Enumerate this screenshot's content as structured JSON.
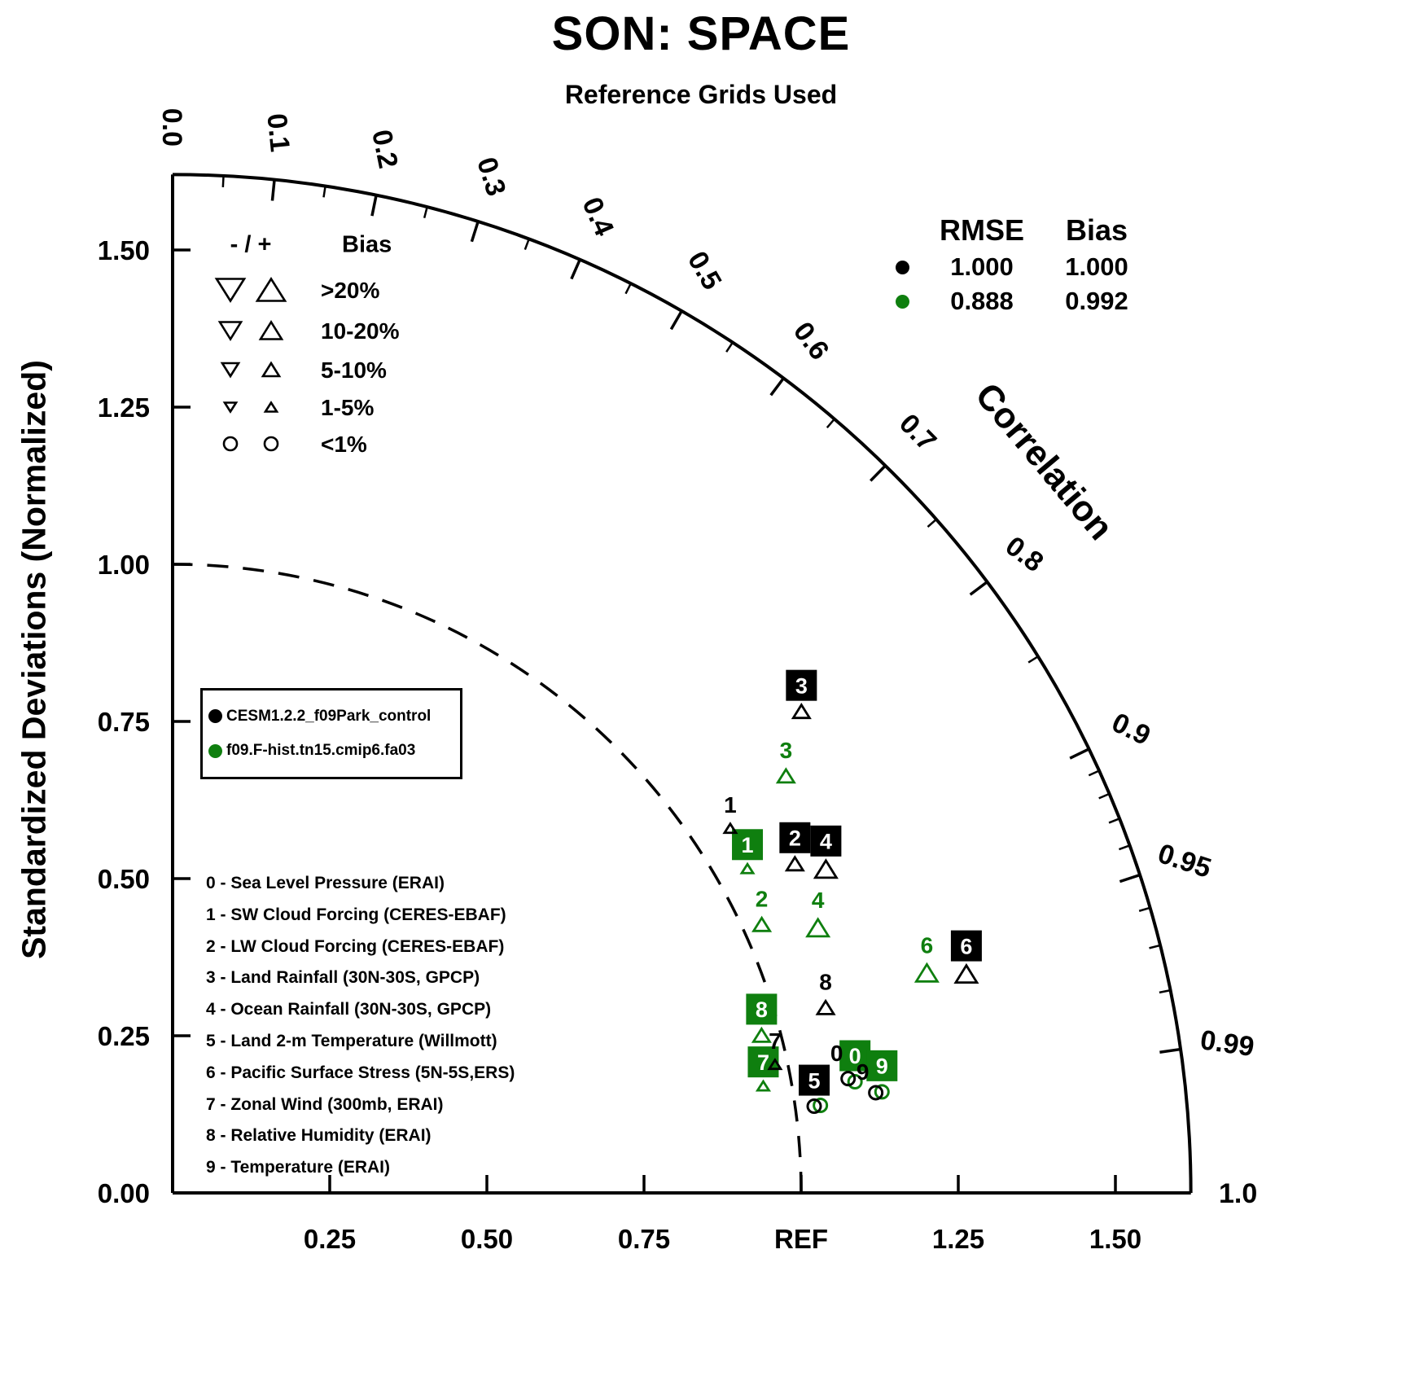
{
  "title": "SON: SPACE",
  "subtitle": "Reference Grids Used",
  "y_axis_title": "Standardized Deviations (Normalized)",
  "chart_data": {
    "type": "taylor",
    "correlation_axis_label": "Correlation",
    "reference_radius": 1.0,
    "sd_axis": {
      "max": 1.62,
      "ticks": [
        {
          "value": 0.0,
          "left": "0.00",
          "bottom": null
        },
        {
          "value": 0.25,
          "left": "0.25",
          "bottom": "0.25"
        },
        {
          "value": 0.5,
          "left": "0.50",
          "bottom": "0.50"
        },
        {
          "value": 0.75,
          "left": "0.75",
          "bottom": "0.75"
        },
        {
          "value": 1.0,
          "left": "1.00",
          "bottom": "REF"
        },
        {
          "value": 1.25,
          "left": "1.25",
          "bottom": "1.25"
        },
        {
          "value": 1.5,
          "left": "1.50",
          "bottom": "1.50"
        }
      ]
    },
    "correlation_ticks": {
      "major": [
        {
          "value": 0.0,
          "label": "0.0"
        },
        {
          "value": 0.1,
          "label": "0.1"
        },
        {
          "value": 0.2,
          "label": "0.2"
        },
        {
          "value": 0.3,
          "label": "0.3"
        },
        {
          "value": 0.4,
          "label": "0.4"
        },
        {
          "value": 0.5,
          "label": "0.5"
        },
        {
          "value": 0.6,
          "label": "0.6"
        },
        {
          "value": 0.7,
          "label": "0.7"
        },
        {
          "value": 0.8,
          "label": "0.8"
        },
        {
          "value": 0.9,
          "label": "0.9"
        },
        {
          "value": 0.95,
          "label": "0.95"
        },
        {
          "value": 0.99,
          "label": "0.99"
        },
        {
          "value": 1.0,
          "label": "1.0"
        }
      ],
      "minor": [
        0.05,
        0.15,
        0.25,
        0.35,
        0.45,
        0.55,
        0.65,
        0.75,
        0.85,
        0.91,
        0.92,
        0.93,
        0.94,
        0.96,
        0.97,
        0.98
      ]
    },
    "bias_legend": {
      "symbols_header": "- / +",
      "title": "Bias",
      "rows": [
        {
          "category": ">20%",
          "label": ">20%"
        },
        {
          "category": "10-20%",
          "label": "10-20%"
        },
        {
          "category": "5-10%",
          "label": "5-10%"
        },
        {
          "category": "1-5%",
          "label": "1-5%"
        },
        {
          "category": "<1%",
          "label": "<1%"
        }
      ]
    },
    "stats": {
      "headers": [
        "RMSE",
        "Bias"
      ],
      "rows": [
        {
          "model": "black",
          "rmse": "1.000",
          "bias": "1.000"
        },
        {
          "model": "green",
          "rmse": "0.888",
          "bias": "0.992"
        }
      ]
    },
    "models": [
      {
        "key": "black",
        "color": "#000000",
        "label": "CESM1.2.2_f09Park_control"
      },
      {
        "key": "green",
        "color": "#0f7f0f",
        "label": "f09.F-hist.tn15.cmip6.fa03"
      }
    ],
    "variables": [
      "0 - Sea Level Pressure (ERAI)",
      "1 - SW Cloud Forcing (CERES-EBAF)",
      "2 - LW Cloud Forcing (CERES-EBAF)",
      "3 - Land Rainfall (30N-30S, GPCP)",
      "4 - Ocean Rainfall (30N-30S, GPCP)",
      "5 - Land 2-m Temperature (Willmott)",
      "6 - Pacific Surface Stress (5N-5S,ERS)",
      "7 - Zonal Wind (300mb, ERAI)",
      "8 - Relative Humidity (ERAI)",
      "9 - Temperature (ERAI)"
    ],
    "points": [
      {
        "model": "black",
        "var": "0",
        "std": 1.09,
        "corr": 0.986,
        "bias": "<1%",
        "sign": "+",
        "boxed": false,
        "ldx": -14
      },
      {
        "model": "black",
        "var": "1",
        "std": 1.06,
        "corr": 0.837,
        "bias": "1-5%",
        "sign": "+",
        "boxed": false
      },
      {
        "model": "black",
        "var": "2",
        "std": 1.12,
        "corr": 0.884,
        "bias": "5-10%",
        "sign": "+",
        "boxed": true
      },
      {
        "model": "black",
        "var": "3",
        "std": 1.26,
        "corr": 0.794,
        "bias": "5-10%",
        "sign": "+",
        "boxed": true
      },
      {
        "model": "black",
        "var": "4",
        "std": 1.16,
        "corr": 0.896,
        "bias": "10-20%",
        "sign": "+",
        "boxed": true
      },
      {
        "model": "black",
        "var": "5",
        "std": 1.03,
        "corr": 0.991,
        "bias": "<1%",
        "sign": "+",
        "boxed": true
      },
      {
        "model": "black",
        "var": "6",
        "std": 1.31,
        "corr": 0.964,
        "bias": "10-20%",
        "sign": "+",
        "boxed": true
      },
      {
        "model": "black",
        "var": "7",
        "std": 0.98,
        "corr": 0.978,
        "bias": "1-5%",
        "sign": "+",
        "boxed": false
      },
      {
        "model": "black",
        "var": "8",
        "std": 1.08,
        "corr": 0.962,
        "bias": "5-10%",
        "sign": "+",
        "boxed": false
      },
      {
        "model": "black",
        "var": "9",
        "std": 1.13,
        "corr": 0.99,
        "bias": "<1%",
        "sign": "+",
        "boxed": false,
        "ldx": -16,
        "ldy": 6
      },
      {
        "model": "green",
        "var": "0",
        "std": 1.1,
        "corr": 0.987,
        "bias": "<1%",
        "sign": "+",
        "boxed": true
      },
      {
        "model": "green",
        "var": "1",
        "std": 1.05,
        "corr": 0.871,
        "bias": "1-5%",
        "sign": "+",
        "boxed": true
      },
      {
        "model": "green",
        "var": "2",
        "std": 1.03,
        "corr": 0.91,
        "bias": "5-10%",
        "sign": "+",
        "boxed": false
      },
      {
        "model": "green",
        "var": "3",
        "std": 1.18,
        "corr": 0.827,
        "bias": "5-10%",
        "sign": "+",
        "boxed": false
      },
      {
        "model": "green",
        "var": "4",
        "std": 1.11,
        "corr": 0.925,
        "bias": "10-20%",
        "sign": "+",
        "boxed": false
      },
      {
        "model": "green",
        "var": "5",
        "std": 1.04,
        "corr": 0.991,
        "bias": "<1%",
        "sign": "+",
        "boxed": false
      },
      {
        "model": "green",
        "var": "6",
        "std": 1.25,
        "corr": 0.96,
        "bias": "10-20%",
        "sign": "+",
        "boxed": false
      },
      {
        "model": "green",
        "var": "7",
        "std": 0.955,
        "corr": 0.984,
        "bias": "1-5%",
        "sign": "+",
        "boxed": true
      },
      {
        "model": "green",
        "var": "8",
        "std": 0.97,
        "corr": 0.966,
        "bias": "5-10%",
        "sign": "+",
        "boxed": true
      },
      {
        "model": "green",
        "var": "9",
        "std": 1.14,
        "corr": 0.99,
        "bias": "<1%",
        "sign": "+",
        "boxed": true
      }
    ]
  }
}
